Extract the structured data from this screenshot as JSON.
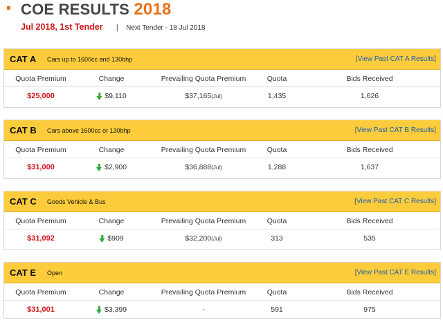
{
  "header": {
    "title_prefix": "COE RESULTS",
    "title_year": "2018",
    "tender": "Jul 2018, 1st Tender",
    "separator": "|",
    "next_tender": "Next Tender - 18 Jul 2018"
  },
  "columns": {
    "premium": "Quota Premium",
    "change": "Change",
    "prevailing": "Prevailing Quota Premium",
    "quota": "Quota",
    "bids": "Bids Received"
  },
  "categories": [
    {
      "name": "CAT A",
      "desc": "Cars up to 1600cc and 130bhp",
      "link_open": "[",
      "link": "View Past CAT A Results",
      "link_close": "]",
      "premium": "$25,000",
      "change": "$9,110",
      "change_direction": "down",
      "prevailing": "$37,165",
      "prevailing_month": "(Jul)",
      "quota": "1,435",
      "bids": "1,626"
    },
    {
      "name": "CAT B",
      "desc": "Cars above 1600cc or 130bhp",
      "link_open": "[",
      "link": "View Past CAT B Results",
      "link_close": "]",
      "premium": "$31,000",
      "change": "$2,900",
      "change_direction": "down",
      "prevailing": "$36,888",
      "prevailing_month": "(Jul)",
      "quota": "1,288",
      "bids": "1,637"
    },
    {
      "name": "CAT C",
      "desc": "Goods Vehicle & Bus",
      "link_open": "[",
      "link": "View Past CAT C Results",
      "link_close": "]",
      "premium": "$31,092",
      "change": "$909",
      "change_direction": "down",
      "prevailing": "$32,200",
      "prevailing_month": "(Jul)",
      "quota": "313",
      "bids": "535"
    },
    {
      "name": "CAT E",
      "desc": "Open",
      "link_open": "[",
      "link": "View Past CAT E Results",
      "link_close": "]",
      "premium": "$31,001",
      "change": "$3,399",
      "change_direction": "down",
      "prevailing": "-",
      "prevailing_month": "",
      "quota": "591",
      "bids": "975"
    }
  ],
  "icons": {
    "bullet": "square-bullet-icon",
    "change": "arrow-down-icon"
  },
  "colors": {
    "accent": "#e8731a",
    "header_bar": "#fdcc3c",
    "premium": "#d0141b",
    "arrow": "#2eaa35",
    "link": "#1a5fb4"
  }
}
